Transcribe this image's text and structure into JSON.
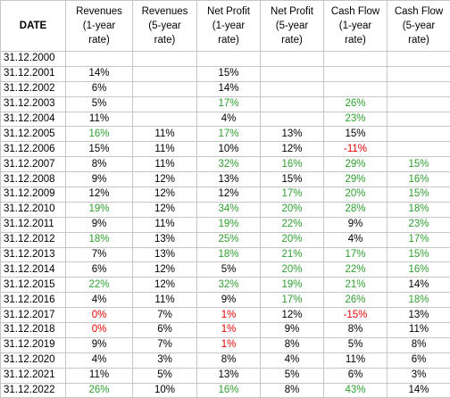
{
  "table": {
    "headers": [
      [
        "DATE"
      ],
      [
        "Revenues",
        "(1-year",
        "rate)"
      ],
      [
        "Revenues",
        "(5-year",
        "rate)"
      ],
      [
        "Net Profit",
        "(1-year",
        "rate)"
      ],
      [
        "Net Profit",
        "(5-year",
        "rate)"
      ],
      [
        "Cash Flow",
        "(1-year",
        "rate)"
      ],
      [
        "Cash Flow",
        "(5-year",
        "rate)"
      ]
    ],
    "rows": [
      [
        "31.12.2000",
        "",
        "",
        "",
        "",
        "",
        ""
      ],
      [
        "31.12.2001",
        "14%",
        "",
        "15%",
        "",
        "",
        ""
      ],
      [
        "31.12.2002",
        "6%",
        "",
        "14%",
        "",
        "",
        ""
      ],
      [
        "31.12.2003",
        "5%",
        "",
        "17%",
        "",
        "26%",
        ""
      ],
      [
        "31.12.2004",
        "11%",
        "",
        "4%",
        "",
        "23%",
        ""
      ],
      [
        "31.12.2005",
        "16%",
        "11%",
        "17%",
        "13%",
        "15%",
        ""
      ],
      [
        "31.12.2006",
        "15%",
        "11%",
        "10%",
        "12%",
        "-11%",
        ""
      ],
      [
        "31.12.2007",
        "8%",
        "11%",
        "32%",
        "16%",
        "29%",
        "15%"
      ],
      [
        "31.12.2008",
        "9%",
        "12%",
        "13%",
        "15%",
        "29%",
        "16%"
      ],
      [
        "31.12.2009",
        "12%",
        "12%",
        "12%",
        "17%",
        "20%",
        "15%"
      ],
      [
        "31.12.2010",
        "19%",
        "12%",
        "34%",
        "20%",
        "28%",
        "18%"
      ],
      [
        "31.12.2011",
        "9%",
        "11%",
        "19%",
        "22%",
        "9%",
        "23%"
      ],
      [
        "31.12.2012",
        "18%",
        "13%",
        "25%",
        "20%",
        "4%",
        "17%"
      ],
      [
        "31.12.2013",
        "7%",
        "13%",
        "18%",
        "21%",
        "17%",
        "15%"
      ],
      [
        "31.12.2014",
        "6%",
        "12%",
        "5%",
        "20%",
        "22%",
        "16%"
      ],
      [
        "31.12.2015",
        "22%",
        "12%",
        "32%",
        "19%",
        "21%",
        "14%"
      ],
      [
        "31.12.2016",
        "4%",
        "11%",
        "9%",
        "17%",
        "26%",
        "18%"
      ],
      [
        "31.12.2017",
        "0%",
        "7%",
        "1%",
        "12%",
        "-15%",
        "13%"
      ],
      [
        "31.12.2018",
        "0%",
        "6%",
        "1%",
        "9%",
        "8%",
        "11%"
      ],
      [
        "31.12.2019",
        "9%",
        "7%",
        "1%",
        "8%",
        "5%",
        "8%"
      ],
      [
        "31.12.2020",
        "4%",
        "3%",
        "8%",
        "4%",
        "11%",
        "6%"
      ],
      [
        "31.12.2021",
        "11%",
        "5%",
        "13%",
        "5%",
        "6%",
        "3%"
      ],
      [
        "31.12.2022",
        "26%",
        "10%",
        "16%",
        "8%",
        "43%",
        "14%"
      ]
    ],
    "cell_colors": [
      [
        "",
        "",
        "",
        "",
        "",
        "",
        ""
      ],
      [
        "",
        "",
        "",
        "",
        "",
        "",
        ""
      ],
      [
        "",
        "",
        "",
        "",
        "",
        "",
        ""
      ],
      [
        "",
        "",
        "",
        "green",
        "",
        "green",
        ""
      ],
      [
        "",
        "",
        "",
        "",
        "",
        "green",
        ""
      ],
      [
        "",
        "green",
        "",
        "green",
        "",
        "",
        ""
      ],
      [
        "",
        "",
        "",
        "",
        "",
        "red",
        ""
      ],
      [
        "",
        "",
        "",
        "green",
        "green",
        "green",
        "green"
      ],
      [
        "",
        "",
        "",
        "",
        "",
        "green",
        "green"
      ],
      [
        "",
        "",
        "",
        "",
        "green",
        "green",
        "green"
      ],
      [
        "",
        "green",
        "",
        "green",
        "green",
        "green",
        "green"
      ],
      [
        "",
        "",
        "",
        "green",
        "green",
        "",
        "green"
      ],
      [
        "",
        "green",
        "",
        "green",
        "green",
        "",
        "green"
      ],
      [
        "",
        "",
        "",
        "green",
        "green",
        "green",
        "green"
      ],
      [
        "",
        "",
        "",
        "",
        "green",
        "green",
        "green"
      ],
      [
        "",
        "green",
        "",
        "green",
        "green",
        "green",
        ""
      ],
      [
        "",
        "",
        "",
        "",
        "green",
        "green",
        "green"
      ],
      [
        "",
        "red",
        "",
        "red",
        "",
        "red",
        ""
      ],
      [
        "",
        "red",
        "",
        "red",
        "",
        "",
        ""
      ],
      [
        "",
        "",
        "",
        "red",
        "",
        "",
        ""
      ],
      [
        "",
        "",
        "",
        "",
        "",
        "",
        ""
      ],
      [
        "",
        "",
        "",
        "",
        "",
        "",
        ""
      ],
      [
        "",
        "green",
        "",
        "green",
        "",
        "green",
        ""
      ]
    ]
  },
  "colors": {
    "green": "#2f9e2f",
    "red": "#e60000",
    "grid": "#c6c6c6",
    "text": "#000000"
  }
}
